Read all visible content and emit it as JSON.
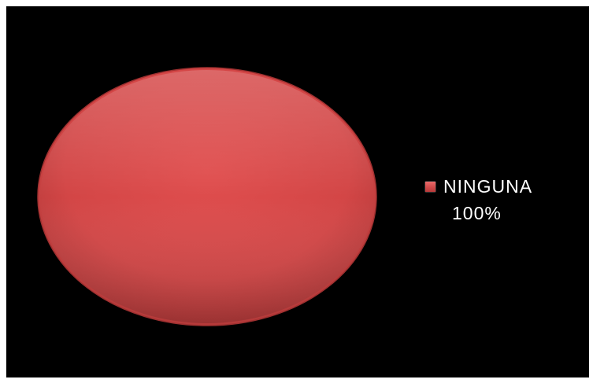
{
  "chart_data": {
    "type": "pie",
    "title": "",
    "categories": [
      "NINGUNA"
    ],
    "values": [
      100
    ],
    "value_labels": [
      "100%"
    ],
    "colors": [
      "#d84a4a"
    ],
    "legend_position": "right"
  }
}
